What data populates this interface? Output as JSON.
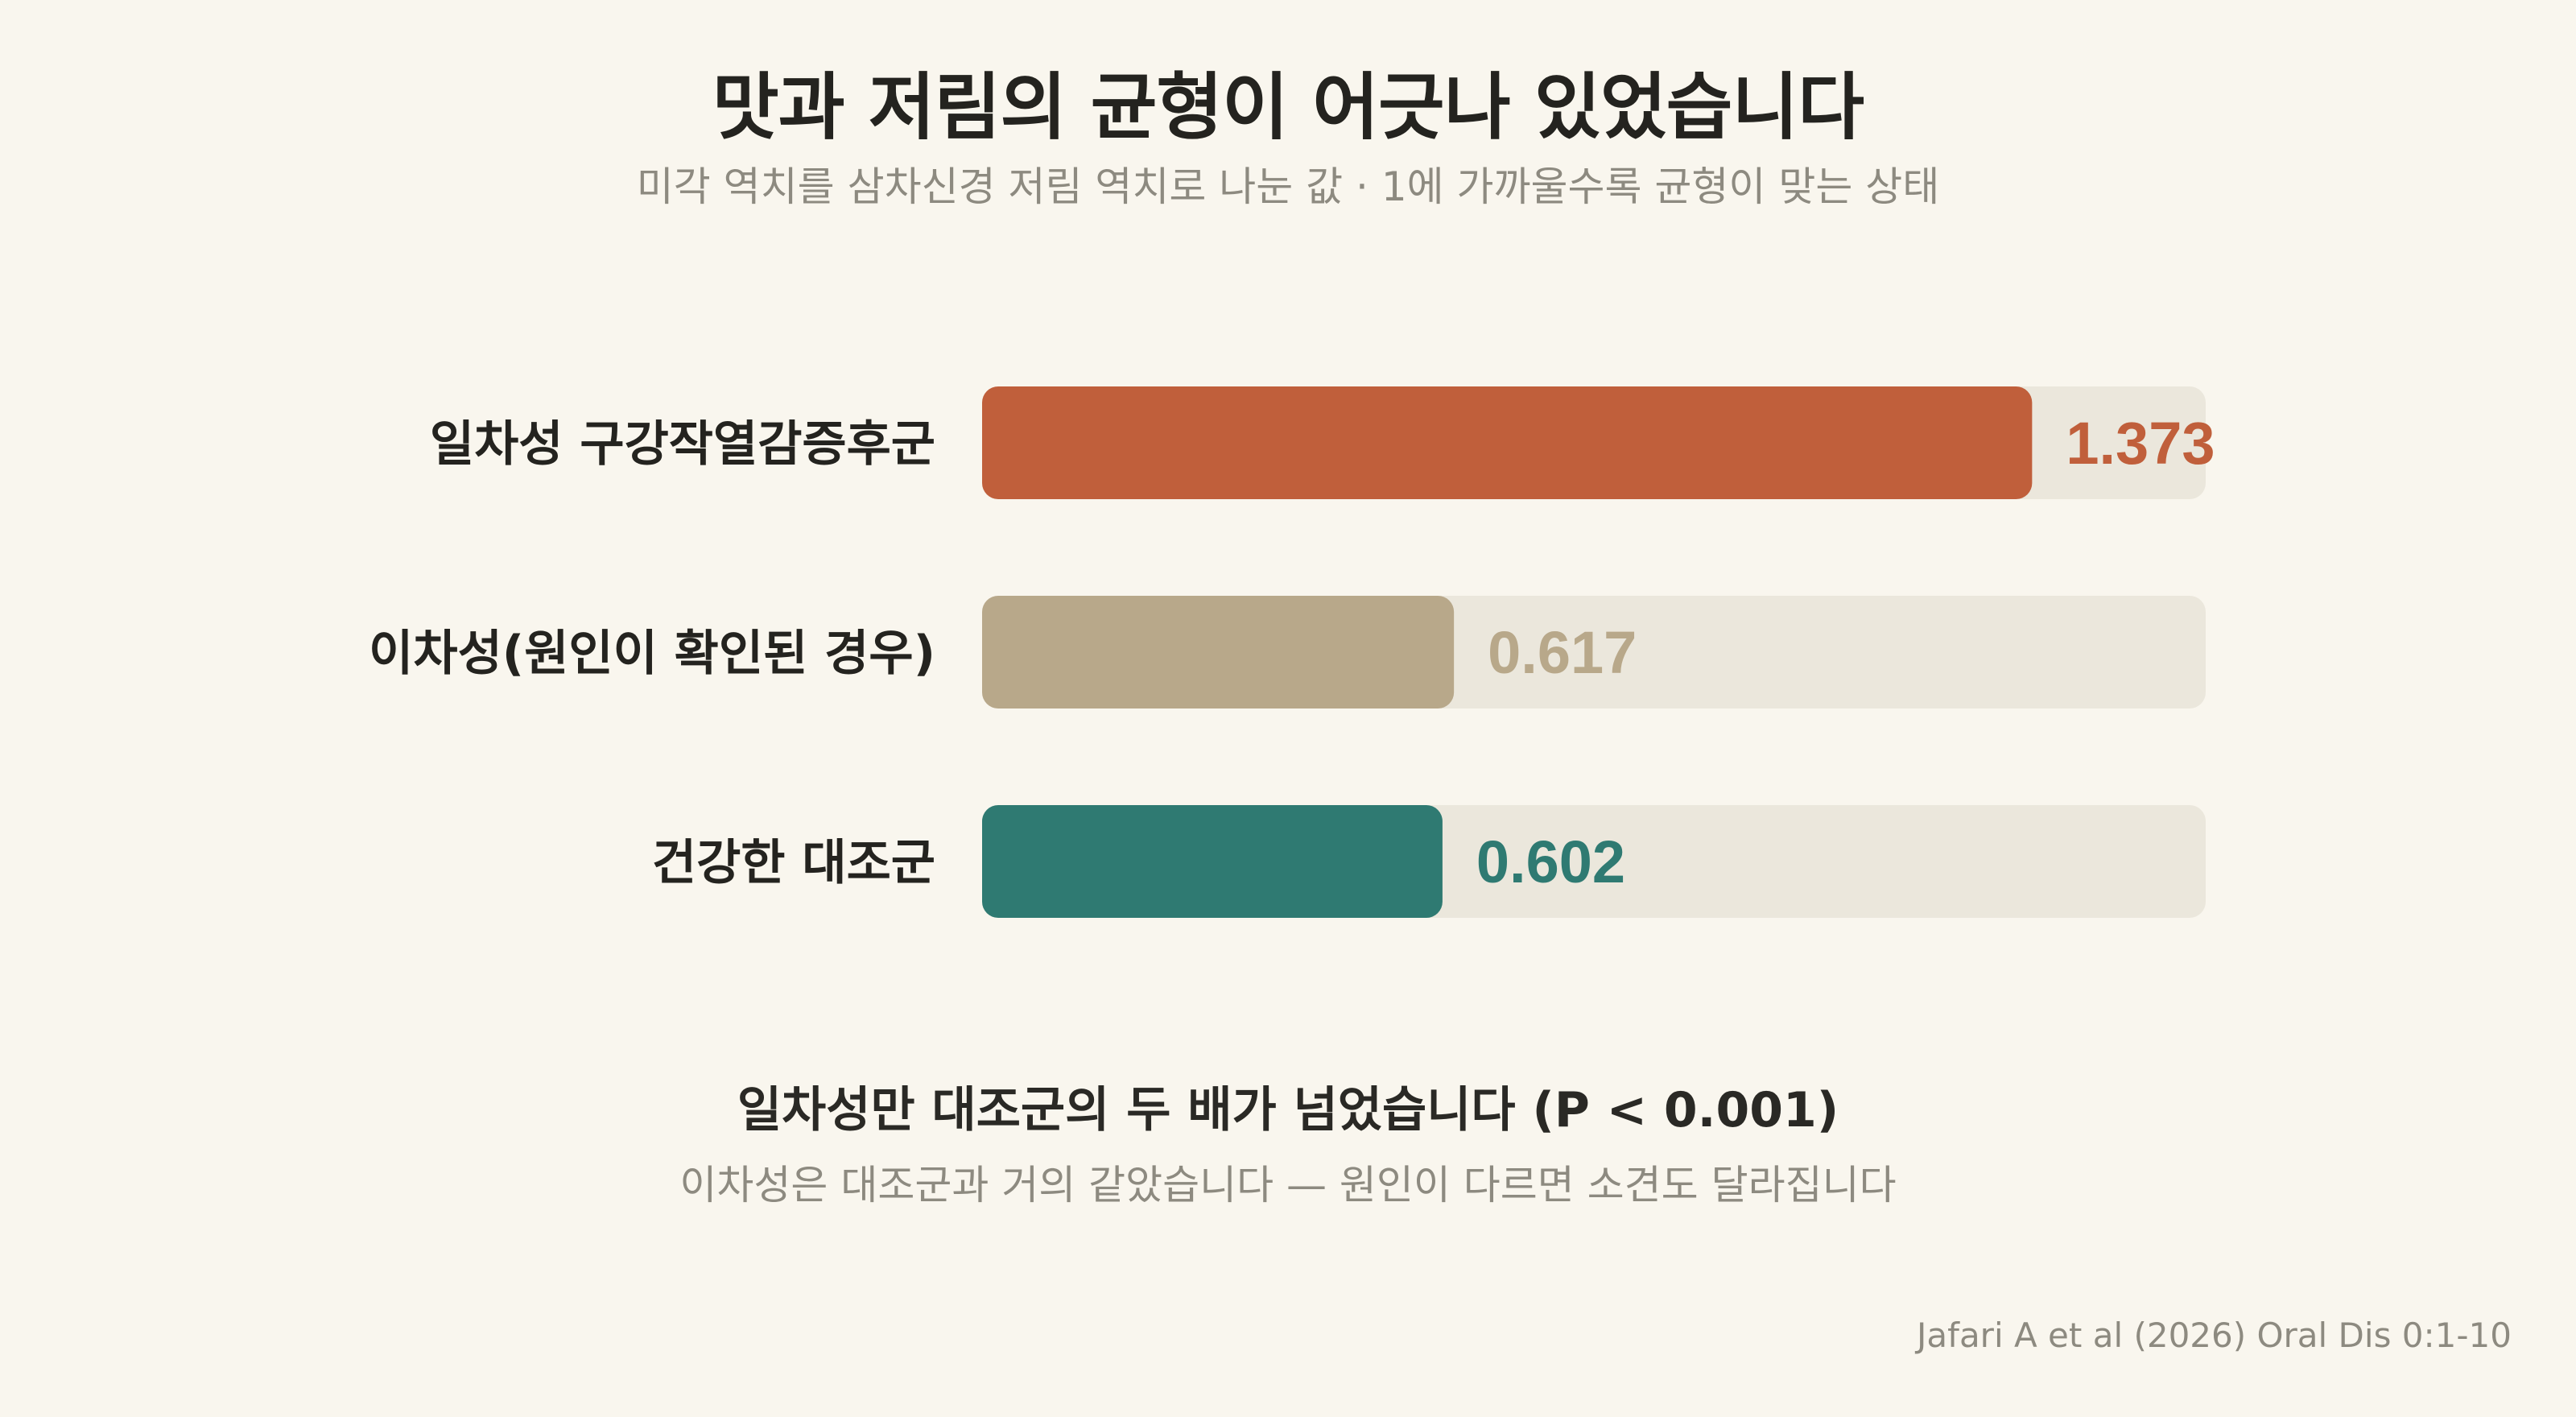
{
  "header": {
    "title": "맛과 저림의 균형이 어긋나 있었습니다",
    "subtitle": "미각 역치를 삼차신경 저림 역치로 나눈 값 · 1에 가까울수록 균형이 맞는 상태"
  },
  "chart_data": {
    "type": "bar",
    "orientation": "horizontal",
    "categories": [
      "일차성 구강작열감증후군",
      "이차성(원인이 확인된 경우)",
      "건강한 대조군"
    ],
    "values": [
      1.373,
      0.617,
      0.602
    ],
    "value_labels": [
      "1.373",
      "0.617",
      "0.602"
    ],
    "colors": [
      "#c05f3b",
      "#b8a88a",
      "#2f7a72"
    ],
    "track_color": "#ebe7dc",
    "xlim": [
      0,
      1.6
    ],
    "xlabel": "",
    "ylabel": "",
    "grid": false,
    "legend": "none"
  },
  "footer": {
    "conclusion": "일차성만 대조군의 두 배가 넘었습니다 (P < 0.001)",
    "conclusion_sub": "이차성은 대조군과 거의 같았습니다 — 원인이 다르면 소견도 달라집니다",
    "source": "Jafari A et al (2026) Oral Dis 0:1-10"
  }
}
